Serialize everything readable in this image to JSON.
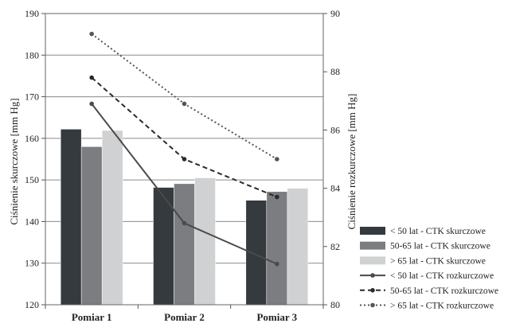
{
  "chart_data": {
    "type": "bar",
    "categories": [
      "Pomiar 1",
      "Pomiar 2",
      "Pomiar 3"
    ],
    "y_left": {
      "label": "Ciśnienie skurczowe [mm Hg]",
      "range": [
        120,
        190
      ],
      "ticks": [
        "120",
        "130",
        "140",
        "150",
        "160",
        "170",
        "180",
        "190"
      ]
    },
    "y_right": {
      "label": "Ciśnienie rozkurczowe [mm Hg]",
      "range": [
        80,
        90
      ],
      "ticks": [
        "80",
        "82",
        "84",
        "86",
        "88",
        "90"
      ]
    },
    "bar_series": [
      {
        "name": "< 50 lat - CTK skurczowe",
        "color": "#353a3f",
        "values": [
          162.2,
          148.2,
          145.1
        ]
      },
      {
        "name": "50-65 lat - CTK skurczowe",
        "color": "#7b7d80",
        "values": [
          158.0,
          149.1,
          147.2
        ]
      },
      {
        "name": "> 65 lat - CTK skurczowe",
        "color": "#d0d1d2",
        "values": [
          161.9,
          150.5,
          148.0
        ]
      }
    ],
    "line_series": [
      {
        "name": "< 50 lat - CTK rozkurczowe",
        "color": "#4a4a4a",
        "style": "solid",
        "values": [
          86.9,
          82.8,
          81.4
        ]
      },
      {
        "name": "50-65 lat - CTK rozkurczowe",
        "color": "#2a2a2a",
        "style": "dashed",
        "values": [
          87.8,
          85.0,
          83.7
        ]
      },
      {
        "name": "> 65 lat - CTK rozkurczowe",
        "color": "#555555",
        "style": "dotted",
        "values": [
          89.3,
          86.9,
          85.0
        ]
      }
    ],
    "grid": true,
    "legend_position": "bottom-right"
  }
}
